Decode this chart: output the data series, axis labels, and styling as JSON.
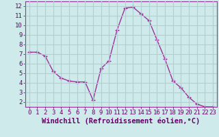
{
  "x": [
    0,
    1,
    2,
    3,
    4,
    5,
    6,
    7,
    8,
    9,
    10,
    11,
    12,
    13,
    14,
    15,
    16,
    17,
    18,
    19,
    20,
    21,
    22,
    23
  ],
  "y": [
    7.2,
    7.2,
    6.8,
    5.2,
    4.5,
    4.2,
    4.1,
    4.1,
    2.2,
    5.5,
    6.3,
    9.5,
    11.8,
    11.9,
    11.2,
    10.5,
    8.5,
    6.5,
    4.2,
    3.5,
    2.5,
    1.8,
    1.5,
    1.5
  ],
  "line_color": "#993399",
  "marker": "+",
  "marker_size": 4,
  "linewidth": 1.0,
  "xlabel": "Windchill (Refroidissement éolien,°C)",
  "xlim": [
    -0.5,
    23.5
  ],
  "ylim": [
    1.5,
    12.5
  ],
  "yticks": [
    2,
    3,
    4,
    5,
    6,
    7,
    8,
    9,
    10,
    11,
    12
  ],
  "xticks": [
    0,
    1,
    2,
    3,
    4,
    5,
    6,
    7,
    8,
    9,
    10,
    11,
    12,
    13,
    14,
    15,
    16,
    17,
    18,
    19,
    20,
    21,
    22,
    23
  ],
  "bg_color": "#ceeaea",
  "grid_color": "#b0d0d0",
  "tick_label_fontsize": 6.5,
  "xlabel_fontsize": 7.5,
  "line_border_color": "#993399"
}
